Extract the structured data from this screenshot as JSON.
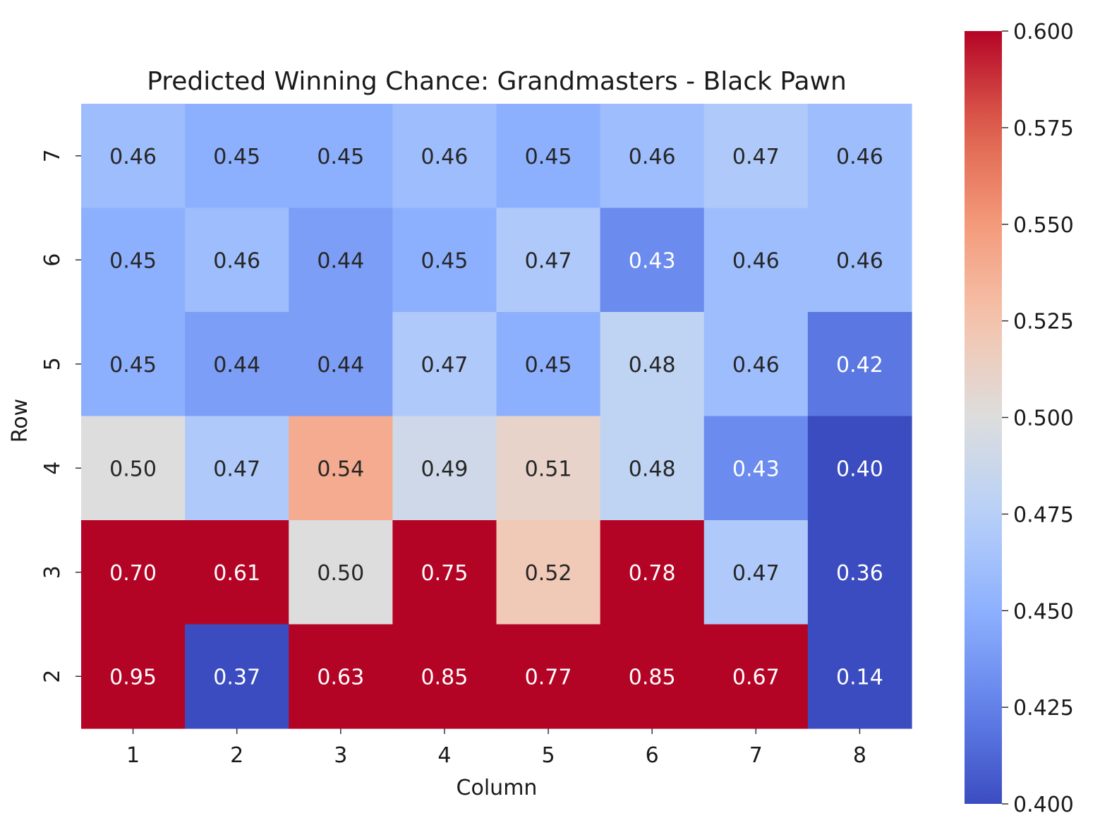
{
  "chart_data": {
    "type": "heatmap",
    "title": "Predicted Winning Chance: Grandmasters - Black Pawn",
    "xlabel": "Column",
    "ylabel": "Row",
    "x_categories": [
      "1",
      "2",
      "3",
      "4",
      "5",
      "6",
      "7",
      "8"
    ],
    "y_categories": [
      "7",
      "6",
      "5",
      "4",
      "3",
      "2"
    ],
    "values": [
      [
        0.46,
        0.45,
        0.45,
        0.46,
        0.45,
        0.46,
        0.47,
        0.46
      ],
      [
        0.45,
        0.46,
        0.44,
        0.45,
        0.47,
        0.43,
        0.46,
        0.46
      ],
      [
        0.45,
        0.44,
        0.44,
        0.47,
        0.45,
        0.48,
        0.46,
        0.42
      ],
      [
        0.5,
        0.47,
        0.54,
        0.49,
        0.51,
        0.48,
        0.43,
        0.4
      ],
      [
        0.7,
        0.61,
        0.5,
        0.75,
        0.52,
        0.78,
        0.47,
        0.36
      ],
      [
        0.95,
        0.37,
        0.63,
        0.85,
        0.77,
        0.85,
        0.67,
        0.14
      ]
    ],
    "colormap": "coolwarm",
    "vmin": 0.4,
    "vmax": 0.6,
    "colorbar_ticks": [
      "0.400",
      "0.425",
      "0.450",
      "0.475",
      "0.500",
      "0.525",
      "0.550",
      "0.575",
      "0.600"
    ],
    "annotate": true,
    "annotation_format": "2 decimals"
  }
}
